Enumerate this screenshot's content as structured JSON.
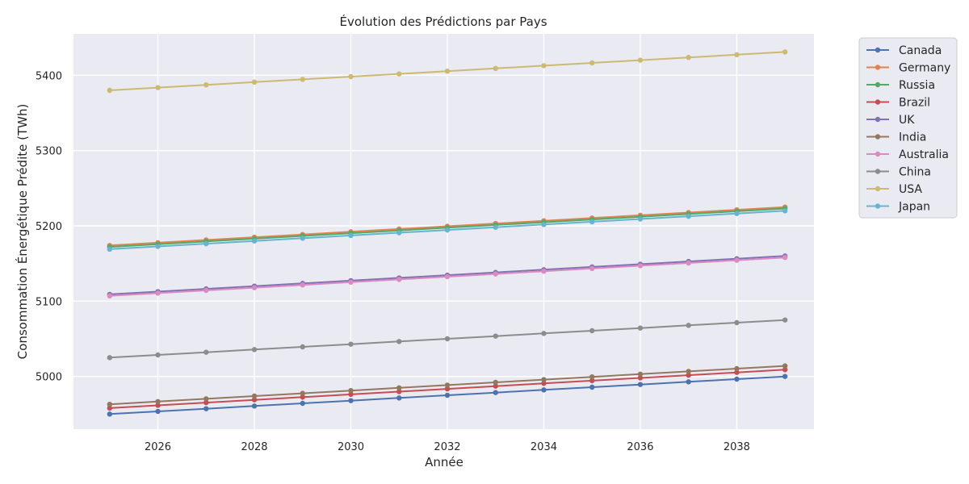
{
  "chart_data": {
    "type": "line",
    "title": "Évolution des Prédictions par Pays",
    "xlabel": "Année",
    "ylabel": "Consommation Énergétique Prédite (TWh)",
    "xlim": [
      2024.25,
      2039.6
    ],
    "ylim": [
      4930,
      5455
    ],
    "x_ticks": [
      2026,
      2028,
      2030,
      2032,
      2034,
      2036,
      2038
    ],
    "y_ticks": [
      5000,
      5100,
      5200,
      5300,
      5400
    ],
    "grid": true,
    "legend_position": "outside-top-right",
    "x": [
      2025,
      2026,
      2027,
      2028,
      2029,
      2030,
      2031,
      2032,
      2033,
      2034,
      2035,
      2036,
      2037,
      2038,
      2039
    ],
    "series": [
      {
        "name": "Canada",
        "color": "#4c72b0",
        "start": 4950,
        "end": 5000
      },
      {
        "name": "Germany",
        "color": "#dd8452",
        "start": 5174,
        "end": 5225
      },
      {
        "name": "Russia",
        "color": "#55a868",
        "start": 5172,
        "end": 5223
      },
      {
        "name": "Brazil",
        "color": "#c44e52",
        "start": 4958,
        "end": 5009
      },
      {
        "name": "UK",
        "color": "#8172b3",
        "start": 5109,
        "end": 5160
      },
      {
        "name": "India",
        "color": "#937860",
        "start": 4963,
        "end": 5014
      },
      {
        "name": "Australia",
        "color": "#da8bc3",
        "start": 5107,
        "end": 5158
      },
      {
        "name": "China",
        "color": "#8c8c8c",
        "start": 5025,
        "end": 5075
      },
      {
        "name": "USA",
        "color": "#ccb974",
        "start": 5380,
        "end": 5431
      },
      {
        "name": "Japan",
        "color": "#64b5cd",
        "start": 5169,
        "end": 5220
      }
    ]
  }
}
